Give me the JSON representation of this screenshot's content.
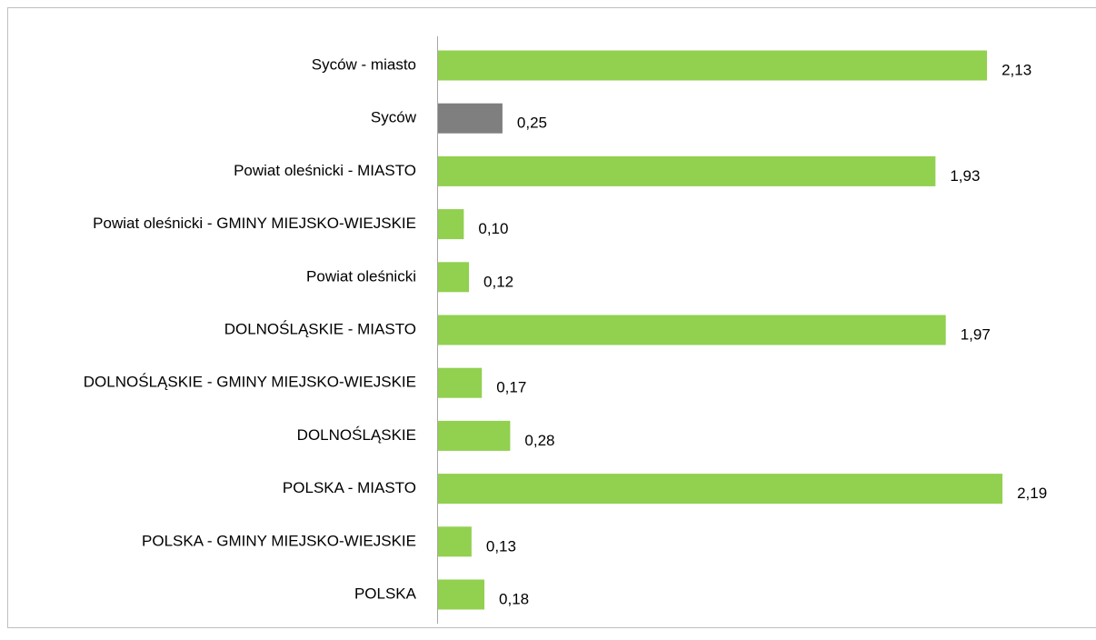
{
  "chart_data": {
    "type": "bar",
    "orientation": "horizontal",
    "categories": [
      "Syców - miasto",
      "Syców",
      "Powiat oleśnicki - MIASTO",
      "Powiat oleśnicki - GMINY MIEJSKO-WIEJSKIE",
      "Powiat oleśnicki",
      "DOLNOŚLĄSKIE - MIASTO",
      "DOLNOŚLĄSKIE - GMINY MIEJSKO-WIEJSKIE",
      "DOLNOŚLĄSKIE",
      "POLSKA - MIASTO",
      "POLSKA - GMINY MIEJSKO-WIEJSKIE",
      "POLSKA"
    ],
    "values": [
      2.13,
      0.25,
      1.93,
      0.1,
      0.12,
      1.97,
      0.17,
      0.28,
      2.19,
      0.13,
      0.18
    ],
    "value_labels": [
      "2,13",
      "0,25",
      "1,93",
      "0,10",
      "0,12",
      "1,97",
      "0,17",
      "0,28",
      "2,19",
      "0,13",
      "0,18"
    ],
    "colors": [
      "#92d050",
      "#7f7f7f",
      "#92d050",
      "#92d050",
      "#92d050",
      "#92d050",
      "#92d050",
      "#92d050",
      "#92d050",
      "#92d050",
      "#92d050"
    ]
  }
}
